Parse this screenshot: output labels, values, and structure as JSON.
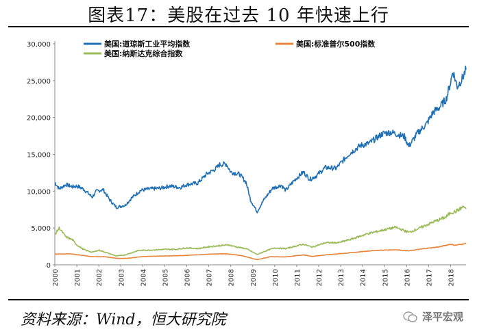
{
  "figure": {
    "title": "图表17：美股在过去 10 年快速上行",
    "source": "资料来源：Wind，恒大研究院",
    "watermark": "泽平宏观"
  },
  "chart_data": {
    "type": "line",
    "xlabel": "",
    "ylabel": "",
    "xlim": [
      2000,
      2018.7
    ],
    "ylim": [
      0,
      30000
    ],
    "x_ticks": [
      "2000",
      "2001",
      "2002",
      "2003",
      "2004",
      "2005",
      "2006",
      "2007",
      "2008",
      "2009",
      "2010",
      "2011",
      "2012",
      "2013",
      "2014",
      "2015",
      "2016",
      "2017",
      "2018"
    ],
    "y_ticks": [
      "0",
      "5,000",
      "10,000",
      "15,000",
      "20,000",
      "25,000",
      "30,000"
    ],
    "y_tick_values": [
      0,
      5000,
      10000,
      15000,
      20000,
      25000,
      30000
    ],
    "legend": "top",
    "series": [
      {
        "name": "美国:道琼斯工业平均指数",
        "color": "#1f6fb5",
        "x": [
          2000.0,
          2000.2,
          2000.5,
          2000.8,
          2001.0,
          2001.3,
          2001.7,
          2001.9,
          2002.2,
          2002.5,
          2002.8,
          2003.2,
          2003.5,
          2003.9,
          2004.3,
          2004.8,
          2005.2,
          2005.7,
          2006.0,
          2006.5,
          2006.9,
          2007.3,
          2007.5,
          2007.8,
          2008.0,
          2008.4,
          2008.7,
          2008.9,
          2009.2,
          2009.5,
          2009.9,
          2010.3,
          2010.5,
          2010.9,
          2011.3,
          2011.6,
          2011.9,
          2012.3,
          2012.8,
          2013.0,
          2013.4,
          2013.9,
          2014.3,
          2014.9,
          2015.3,
          2015.6,
          2015.9,
          2016.1,
          2016.5,
          2016.9,
          2017.2,
          2017.5,
          2017.8,
          2018.0,
          2018.1,
          2018.3,
          2018.5,
          2018.7
        ],
        "values": [
          11200,
          10300,
          10900,
          10600,
          10700,
          10300,
          9200,
          10000,
          10200,
          8800,
          7800,
          8100,
          9100,
          10100,
          10300,
          10400,
          10700,
          10500,
          10900,
          11100,
          12300,
          13000,
          13600,
          13700,
          12600,
          12300,
          11200,
          8800,
          7200,
          8800,
          10400,
          10800,
          10100,
          11500,
          12600,
          11600,
          12100,
          13200,
          13100,
          13800,
          15100,
          16200,
          16500,
          17800,
          18000,
          17700,
          17400,
          16100,
          17900,
          19100,
          20700,
          21400,
          22500,
          24800,
          26300,
          24200,
          25100,
          26500
        ]
      },
      {
        "name": "美国:标准普尔500指数",
        "color": "#e8853a",
        "x": [
          2000.0,
          2000.7,
          2001.2,
          2001.7,
          2002.3,
          2002.8,
          2003.3,
          2004.0,
          2005.0,
          2006.0,
          2007.0,
          2007.8,
          2008.5,
          2009.2,
          2009.8,
          2010.5,
          2011.3,
          2011.7,
          2012.5,
          2013.5,
          2014.5,
          2015.5,
          2016.1,
          2016.8,
          2017.5,
          2018.0,
          2018.2,
          2018.7
        ],
        "values": [
          1450,
          1500,
          1300,
          1100,
          1100,
          880,
          880,
          1130,
          1200,
          1280,
          1450,
          1500,
          1250,
          700,
          1100,
          1080,
          1350,
          1150,
          1400,
          1650,
          1950,
          2050,
          1900,
          2200,
          2450,
          2800,
          2650,
          2900
        ]
      },
      {
        "name": "美国:纳斯达克综合指数",
        "color": "#9bbb59",
        "x": [
          2000.0,
          2000.2,
          2000.5,
          2000.8,
          2001.0,
          2001.3,
          2001.7,
          2002.0,
          2002.5,
          2002.8,
          2003.2,
          2003.8,
          2004.3,
          2005.0,
          2005.5,
          2006.0,
          2006.5,
          2007.0,
          2007.5,
          2007.9,
          2008.3,
          2008.7,
          2009.2,
          2009.6,
          2010.0,
          2010.5,
          2011.3,
          2011.7,
          2012.3,
          2012.9,
          2013.5,
          2014.2,
          2014.9,
          2015.5,
          2016.1,
          2016.6,
          2017.2,
          2017.8,
          2018.0,
          2018.2,
          2018.6,
          2018.7
        ],
        "values": [
          4100,
          5000,
          3800,
          3400,
          2700,
          2100,
          1700,
          2000,
          1500,
          1200,
          1350,
          1950,
          2000,
          2100,
          2100,
          2300,
          2200,
          2450,
          2600,
          2700,
          2400,
          2200,
          1400,
          1900,
          2300,
          2200,
          2800,
          2400,
          3000,
          3000,
          3500,
          4200,
          4700,
          5100,
          4400,
          5000,
          5800,
          6500,
          7100,
          7200,
          7900,
          7600
        ]
      }
    ]
  }
}
